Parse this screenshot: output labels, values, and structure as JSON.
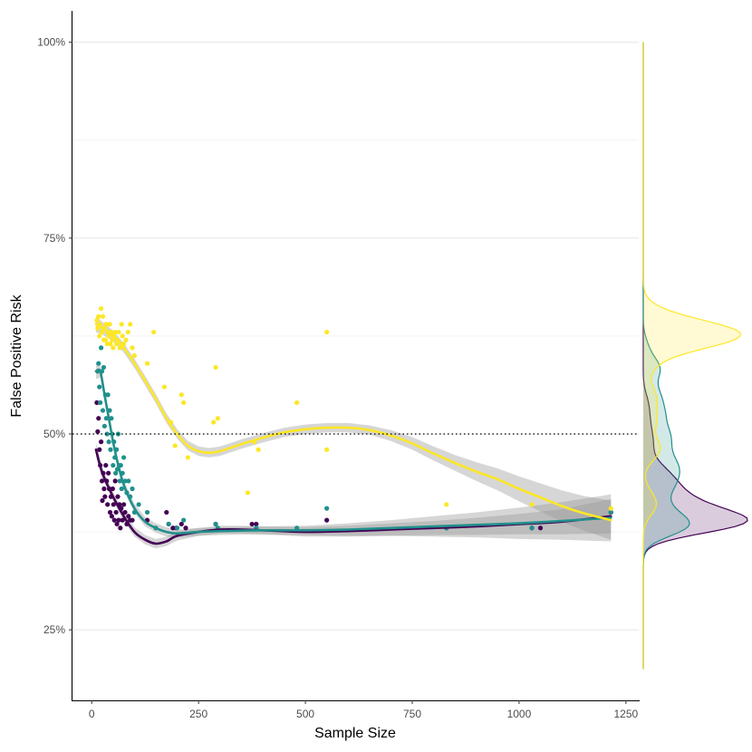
{
  "chart_data": {
    "type": "scatter",
    "xlabel": "Sample Size",
    "ylabel": "False Positive Risk",
    "xlim": [
      -45,
      1280
    ],
    "ylim": [
      16,
      104
    ],
    "x_ticks": [
      0,
      250,
      500,
      750,
      1000,
      1250
    ],
    "x_tick_labels": [
      "0",
      "250",
      "500",
      "750",
      "1000",
      "1250"
    ],
    "y_ticks": [
      25,
      50,
      75,
      100
    ],
    "y_tick_labels": [
      "25%",
      "50%",
      "75%",
      "100%"
    ],
    "y_minor_grid": [
      37.5,
      62.5,
      87.5
    ],
    "reference_line_y": 50,
    "grid": "horizontal",
    "legend": "none",
    "marginal_density": "right",
    "series": [
      {
        "color": "#440154",
        "points": [
          [
            12,
            54
          ],
          [
            14,
            50.3
          ],
          [
            16,
            52
          ],
          [
            18,
            48
          ],
          [
            20,
            46
          ],
          [
            22,
            49
          ],
          [
            24,
            44
          ],
          [
            25,
            41.5
          ],
          [
            27,
            45
          ],
          [
            29,
            43
          ],
          [
            31,
            42
          ],
          [
            33,
            46
          ],
          [
            35,
            44
          ],
          [
            37,
            41
          ],
          [
            39,
            45
          ],
          [
            41,
            43
          ],
          [
            43,
            40
          ],
          [
            45,
            42
          ],
          [
            47,
            39.5
          ],
          [
            49,
            43
          ],
          [
            51,
            41
          ],
          [
            53,
            39
          ],
          [
            55,
            44
          ],
          [
            57,
            40
          ],
          [
            59,
            38.5
          ],
          [
            61,
            42
          ],
          [
            63,
            39
          ],
          [
            65,
            41
          ],
          [
            67,
            38
          ],
          [
            69,
            40.5
          ],
          [
            72,
            39
          ],
          [
            75,
            41
          ],
          [
            78,
            40
          ],
          [
            82,
            38.5
          ],
          [
            86,
            39.5
          ],
          [
            90,
            39
          ],
          [
            95,
            39
          ],
          [
            130,
            39
          ],
          [
            175,
            40
          ],
          [
            180,
            38.5
          ],
          [
            190,
            38
          ],
          [
            198,
            38
          ],
          [
            210,
            38.5
          ],
          [
            220,
            38
          ],
          [
            290,
            38.5
          ],
          [
            375,
            38.5
          ],
          [
            385,
            38.5
          ],
          [
            550,
            39
          ],
          [
            830,
            38
          ],
          [
            1030,
            38
          ],
          [
            1050,
            38
          ],
          [
            1215,
            40
          ]
        ],
        "fit": [
          [
            10,
            48
          ],
          [
            25,
            45
          ],
          [
            50,
            42
          ],
          [
            75,
            39.5
          ],
          [
            100,
            37.5
          ],
          [
            125,
            36.5
          ],
          [
            150,
            36
          ],
          [
            175,
            36.3
          ],
          [
            200,
            37
          ],
          [
            250,
            37.5
          ],
          [
            300,
            37.8
          ],
          [
            350,
            37.8
          ],
          [
            400,
            37.7
          ],
          [
            500,
            37.5
          ],
          [
            600,
            37.6
          ],
          [
            700,
            37.8
          ],
          [
            800,
            38
          ],
          [
            900,
            38.2
          ],
          [
            1000,
            38.5
          ],
          [
            1100,
            38.8
          ],
          [
            1215,
            39.5
          ]
        ],
        "band_width": [
          0.9,
          0.7,
          0.6,
          0.6,
          0.6,
          0.6,
          0.6,
          0.6,
          0.6,
          0.5,
          0.5,
          0.5,
          0.5,
          0.6,
          0.7,
          0.8,
          0.9,
          1.1,
          1.3,
          1.6,
          2.2
        ]
      },
      {
        "color": "#21908C",
        "points": [
          [
            14,
            58
          ],
          [
            16,
            59
          ],
          [
            18,
            56
          ],
          [
            20,
            54
          ],
          [
            22,
            61
          ],
          [
            24,
            58
          ],
          [
            26,
            53
          ],
          [
            28,
            58.5
          ],
          [
            30,
            51
          ],
          [
            32,
            55
          ],
          [
            34,
            52
          ],
          [
            36,
            50
          ],
          [
            38,
            55
          ],
          [
            40,
            49
          ],
          [
            42,
            53
          ],
          [
            44,
            48
          ],
          [
            46,
            52
          ],
          [
            48,
            50
          ],
          [
            50,
            46
          ],
          [
            52,
            49
          ],
          [
            54,
            47
          ],
          [
            56,
            45
          ],
          [
            58,
            48
          ],
          [
            60,
            45.5
          ],
          [
            62,
            50
          ],
          [
            64,
            46
          ],
          [
            66,
            44
          ],
          [
            68,
            46
          ],
          [
            70,
            43
          ],
          [
            72,
            45
          ],
          [
            75,
            47
          ],
          [
            78,
            44
          ],
          [
            82,
            42.5
          ],
          [
            86,
            44
          ],
          [
            90,
            42
          ],
          [
            95,
            43
          ],
          [
            100,
            40
          ],
          [
            110,
            41
          ],
          [
            130,
            40
          ],
          [
            150,
            38
          ],
          [
            180,
            38.5
          ],
          [
            200,
            38
          ],
          [
            215,
            39
          ],
          [
            290,
            38.5
          ],
          [
            295,
            38
          ],
          [
            385,
            38
          ],
          [
            480,
            38
          ],
          [
            550,
            40.5
          ],
          [
            830,
            38
          ],
          [
            1030,
            38
          ],
          [
            1215,
            40
          ]
        ],
        "fit": [
          [
            10,
            58
          ],
          [
            20,
            58
          ],
          [
            30,
            55
          ],
          [
            40,
            52
          ],
          [
            50,
            49
          ],
          [
            60,
            46.5
          ],
          [
            75,
            43.5
          ],
          [
            100,
            40.5
          ],
          [
            125,
            38.8
          ],
          [
            150,
            38
          ],
          [
            175,
            37.5
          ],
          [
            200,
            37.3
          ],
          [
            250,
            37.5
          ],
          [
            300,
            37.6
          ],
          [
            400,
            37.7
          ],
          [
            500,
            37.7
          ],
          [
            600,
            37.8
          ],
          [
            700,
            38
          ],
          [
            800,
            38.2
          ],
          [
            900,
            38.4
          ],
          [
            1000,
            38.6
          ],
          [
            1100,
            38.9
          ],
          [
            1215,
            39.3
          ]
        ],
        "band_width": [
          1.0,
          0.8,
          0.7,
          0.7,
          0.6,
          0.6,
          0.6,
          0.6,
          0.6,
          0.6,
          0.6,
          0.5,
          0.5,
          0.5,
          0.5,
          0.6,
          0.8,
          1.0,
          1.3,
          1.6,
          2.0,
          2.4,
          3.0
        ]
      },
      {
        "color": "#FDE725",
        "points": [
          [
            12,
            64.5
          ],
          [
            14,
            63.5
          ],
          [
            16,
            65
          ],
          [
            18,
            62.5
          ],
          [
            20,
            64
          ],
          [
            22,
            66
          ],
          [
            24,
            63
          ],
          [
            26,
            65
          ],
          [
            28,
            62
          ],
          [
            30,
            63.5
          ],
          [
            32,
            62
          ],
          [
            34,
            64
          ],
          [
            36,
            61.5
          ],
          [
            38,
            63
          ],
          [
            40,
            62.5
          ],
          [
            42,
            64
          ],
          [
            44,
            61.5
          ],
          [
            46,
            63
          ],
          [
            48,
            62
          ],
          [
            50,
            61
          ],
          [
            52,
            62.5
          ],
          [
            55,
            63
          ],
          [
            58,
            61.5
          ],
          [
            60,
            62
          ],
          [
            63,
            63
          ],
          [
            66,
            61
          ],
          [
            70,
            64
          ],
          [
            72,
            62.5
          ],
          [
            75,
            61.5
          ],
          [
            80,
            62
          ],
          [
            85,
            63
          ],
          [
            90,
            64
          ],
          [
            95,
            61
          ],
          [
            100,
            60
          ],
          [
            130,
            59
          ],
          [
            145,
            63
          ],
          [
            170,
            56
          ],
          [
            185,
            51.5
          ],
          [
            195,
            48.5
          ],
          [
            210,
            55
          ],
          [
            215,
            54
          ],
          [
            225,
            47
          ],
          [
            285,
            51.5
          ],
          [
            290,
            58.5
          ],
          [
            295,
            52
          ],
          [
            365,
            42.5
          ],
          [
            380,
            49
          ],
          [
            390,
            48
          ],
          [
            480,
            54
          ],
          [
            550,
            63
          ],
          [
            550,
            48
          ],
          [
            830,
            41
          ],
          [
            1030,
            41
          ],
          [
            1215,
            40.5
          ]
        ],
        "fit": [
          [
            10,
            64
          ],
          [
            25,
            63.5
          ],
          [
            50,
            62.5
          ],
          [
            75,
            61
          ],
          [
            100,
            59
          ],
          [
            125,
            56.8
          ],
          [
            150,
            54.5
          ],
          [
            175,
            52
          ],
          [
            200,
            50
          ],
          [
            225,
            48.5
          ],
          [
            250,
            47.8
          ],
          [
            275,
            47.6
          ],
          [
            300,
            47.8
          ],
          [
            350,
            48.7
          ],
          [
            400,
            49.5
          ],
          [
            450,
            50.2
          ],
          [
            500,
            50.6
          ],
          [
            550,
            50.8
          ],
          [
            600,
            50.8
          ],
          [
            650,
            50.5
          ],
          [
            700,
            49.8
          ],
          [
            750,
            48.8
          ],
          [
            800,
            47.5
          ],
          [
            850,
            46.3
          ],
          [
            900,
            45.2
          ],
          [
            950,
            44.2
          ],
          [
            1000,
            43
          ],
          [
            1050,
            41.9
          ],
          [
            1100,
            40.8
          ],
          [
            1150,
            39.9
          ],
          [
            1215,
            39
          ]
        ],
        "band_width": [
          1.0,
          0.8,
          0.7,
          0.6,
          0.6,
          0.6,
          0.6,
          0.6,
          0.6,
          0.6,
          0.6,
          0.6,
          0.6,
          0.6,
          0.6,
          0.6,
          0.6,
          0.6,
          0.6,
          0.6,
          0.7,
          0.8,
          0.9,
          1.0,
          1.2,
          1.4,
          1.6,
          1.8,
          2.0,
          2.2,
          2.5
        ]
      }
    ]
  }
}
